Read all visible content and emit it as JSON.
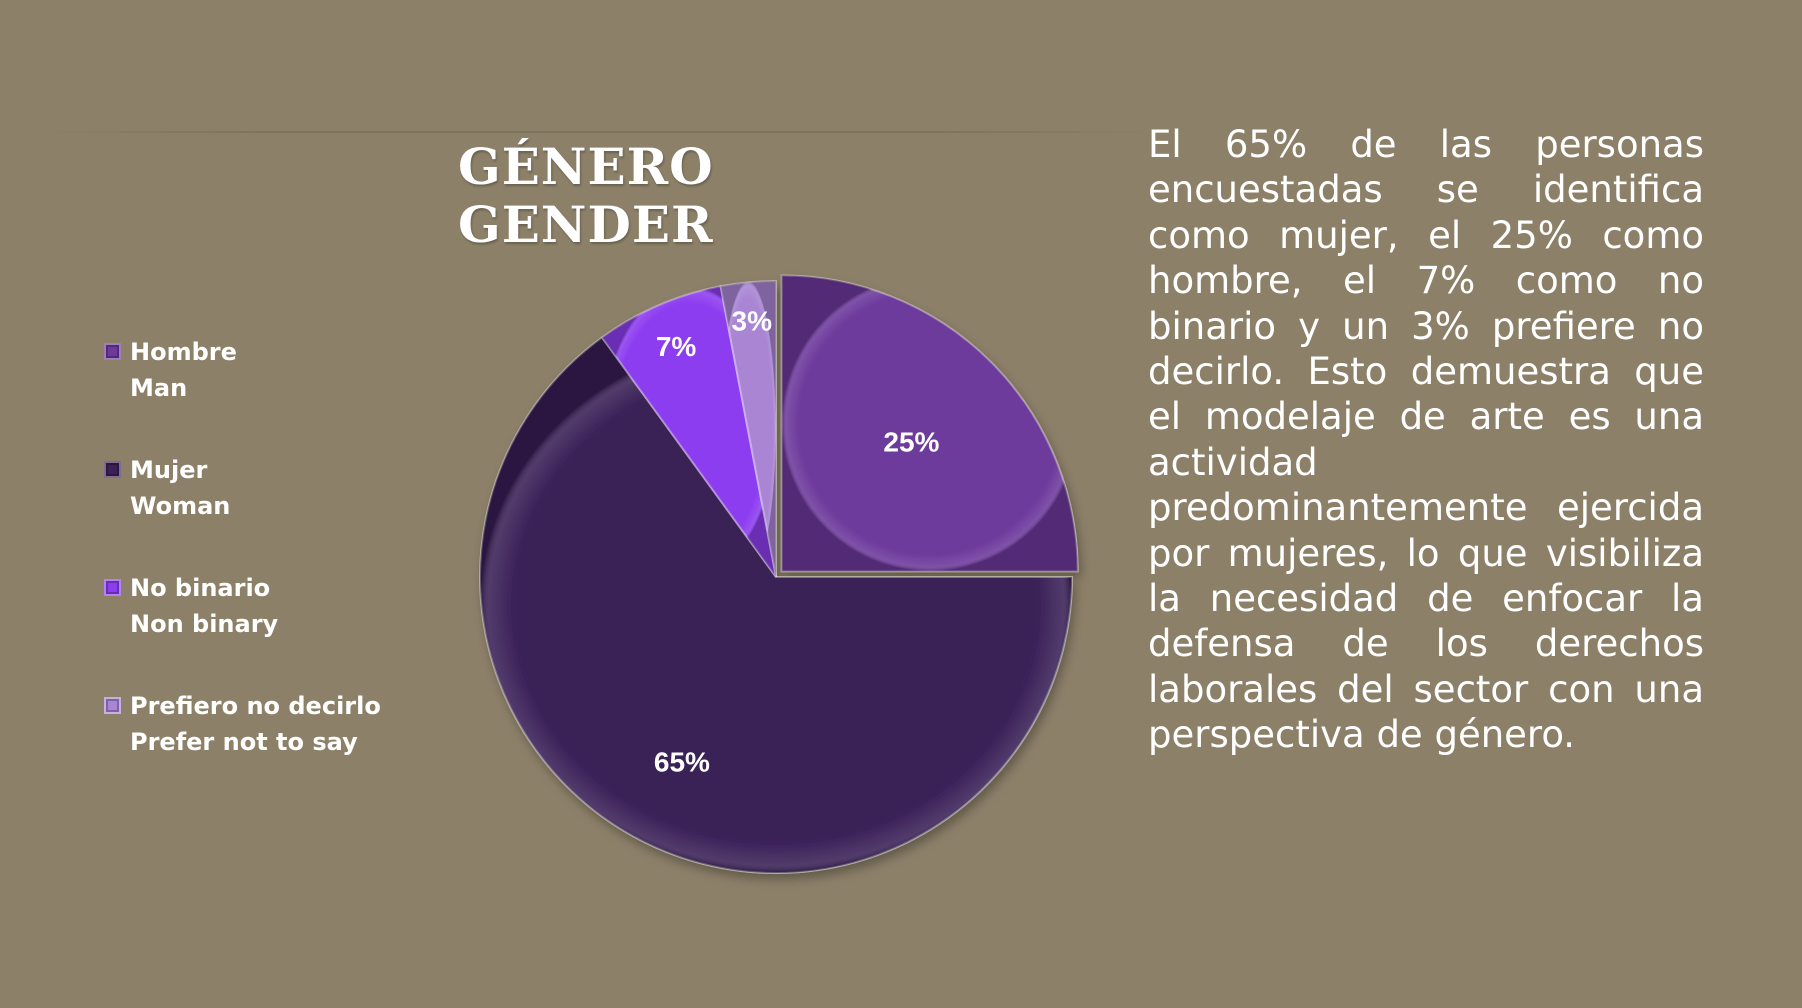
{
  "title": {
    "line1": "GÉNERO",
    "line2": "GENDER"
  },
  "chart_data": {
    "type": "pie",
    "categories": [
      "Hombre\nMan",
      "Mujer\nWoman",
      "No binario\nNon binary",
      "Prefiero no decirlo\nPrefer not to say"
    ],
    "values": [
      25,
      65,
      7,
      3
    ],
    "labels": [
      "25%",
      "65%",
      "7%",
      "3%"
    ],
    "colors": [
      "#6d3a9c",
      "#3a2057",
      "#8d3df0",
      "#a985d4"
    ],
    "legend_position": "left",
    "title": "GÉNERO GENDER"
  },
  "legend": [
    {
      "line1": "Hombre",
      "line2": "Man",
      "color": "#6d3a9c"
    },
    {
      "line1": "Mujer",
      "line2": "Woman",
      "color": "#3a2057"
    },
    {
      "line1": "No binario",
      "line2": "Non binary",
      "color": "#8d3df0"
    },
    {
      "line1": "Prefiero no decirlo",
      "line2": "Prefer not to say",
      "color": "#a985d4"
    }
  ],
  "description": "El 65% de las personas encuestadas se identifica como mujer, el 25% como hombre, el 7% como no binario y un 3% prefiere no decirlo. Esto demuestra que el modelaje de arte es una actividad predominantemente ejercida por mujeres, lo que visibiliza la necesidad de enfocar la defensa de los derechos laborales del sector con una perspectiva de género."
}
